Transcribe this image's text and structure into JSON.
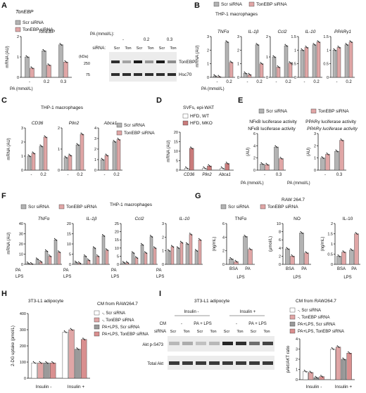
{
  "colors": {
    "scr": "#b3b3b3",
    "ton": "#e0a6a6",
    "ton_dark": "#c97b7b",
    "axis": "#222222",
    "blot_bg": "#ececec",
    "band": "#1a1a1a"
  },
  "legend": {
    "scr": "Scr siRNA",
    "ton": "TonEBP siRNA",
    "wt": "HFD, WT",
    "mko": "HFD, MKO"
  },
  "headers": {
    "thp1": "THP-1 macrophages",
    "svf": "SVFs, epi-WAT",
    "raw": "RAW 264.7",
    "adipo": "3T3-L1 adipocyte",
    "cm": "CM from RAW264.7"
  },
  "labels": {
    "mrna": "mRNA (AU)",
    "au": "(AU)",
    "pa_axis": "PA (mmol/L)",
    "pa": "PA",
    "lps": "LPS",
    "bsa": "BSA",
    "ngml": "(ng/mL)",
    "umol": "(μmol/L)",
    "twodg": "2-DG uptake (pmol/L)",
    "ratio": "pAkt/AKT ratio",
    "insulin_minus": "Insulin -",
    "insulin_plus": "Insulin +",
    "siRNA": "siRNA:",
    "kda": "(kDa)",
    "cm": "CM",
    "sirna": "siRNA",
    "scr": "Scr",
    "ton": "Ton",
    "pa_lps": "PA + LPS",
    "dash": "-"
  },
  "cm_legend": [
    "-, Scr siRNA",
    "-, TonEBP siRNA",
    "PA+LPS, Scr siRNA",
    "PA+LPS, TonEBP siRNA"
  ],
  "blot": {
    "tonebp": "TonEBP",
    "hsc70": "Hsc70",
    "akt_p": "Akt p-S473",
    "akt_total": "Total Akt",
    "marker_kda": [
      "250",
      "75"
    ],
    "pa_row": [
      "-",
      "0.2",
      "0.3"
    ],
    "pa_label": "PA (mmol/L):"
  },
  "panels": {
    "A": "A",
    "B": "B",
    "C": "C",
    "D": "D",
    "E": "E",
    "F": "F",
    "G": "G",
    "H": "H",
    "I": "I"
  },
  "chart_data": [
    {
      "panel": "A",
      "type": "bar",
      "title": "TonEBP",
      "ylabel": "mRNA (AU)",
      "ylim": [
        0,
        2
      ],
      "yticks": [
        0,
        1,
        2
      ],
      "categories": [
        "-",
        "0.2",
        "0.3"
      ],
      "series": [
        {
          "name": "Scr siRNA",
          "values": [
            1.0,
            1.3,
            1.6
          ]
        },
        {
          "name": "TonEBP siRNA",
          "values": [
            0.45,
            0.6,
            0.75
          ]
        }
      ]
    },
    {
      "panel": "B",
      "type": "bar",
      "title": "TNFα",
      "ylim": [
        0,
        3
      ],
      "yticks": [
        0,
        1,
        2,
        3
      ],
      "categories": [
        "-",
        "0.2"
      ],
      "series": [
        {
          "name": "Scr siRNA",
          "values": [
            0.1,
            2.6
          ]
        },
        {
          "name": "TonEBP siRNA",
          "values": [
            0.05,
            1.1
          ]
        }
      ]
    },
    {
      "panel": "B",
      "type": "bar",
      "title": "IL-1β",
      "ylim": [
        0,
        3
      ],
      "yticks": [
        0,
        1,
        2,
        3
      ],
      "categories": [
        "-",
        "0.2"
      ],
      "series": [
        {
          "name": "Scr siRNA",
          "values": [
            0.3,
            2.4
          ]
        },
        {
          "name": "TonEBP siRNA",
          "values": [
            0.2,
            1.0
          ]
        }
      ]
    },
    {
      "panel": "B",
      "type": "bar",
      "title": "Ccl2",
      "ylim": [
        0,
        2
      ],
      "yticks": [
        0,
        1,
        2
      ],
      "categories": [
        "-",
        "0.2"
      ],
      "series": [
        {
          "name": "Scr siRNA",
          "values": [
            1.0,
            1.55
          ]
        },
        {
          "name": "TonEBP siRNA",
          "values": [
            0.5,
            0.7
          ]
        }
      ]
    },
    {
      "panel": "B",
      "type": "bar",
      "title": "IL-10",
      "ylim": [
        0,
        1.5
      ],
      "yticks": [
        0,
        0.5,
        1,
        1.5
      ],
      "categories": [
        "-",
        "0.2"
      ],
      "series": [
        {
          "name": "Scr siRNA",
          "values": [
            1.0,
            1.2
          ]
        },
        {
          "name": "TonEBP siRNA",
          "values": [
            1.1,
            1.3
          ]
        }
      ]
    },
    {
      "panel": "B",
      "type": "bar",
      "title": "PPARγ1",
      "ylim": [
        0,
        1.5
      ],
      "yticks": [
        0,
        0.5,
        1,
        1.5
      ],
      "categories": [
        "-",
        "0.2"
      ],
      "series": [
        {
          "name": "Scr siRNA",
          "values": [
            1.0,
            1.2
          ]
        },
        {
          "name": "TonEBP siRNA",
          "values": [
            1.1,
            1.3
          ]
        }
      ]
    },
    {
      "panel": "C",
      "type": "bar",
      "title": "CD36",
      "ylim": [
        0,
        3
      ],
      "yticks": [
        0,
        1,
        2,
        3
      ],
      "categories": [
        "-",
        "0.2"
      ],
      "series": [
        {
          "name": "Scr siRNA",
          "values": [
            1.0,
            1.7
          ]
        },
        {
          "name": "TonEBP siRNA",
          "values": [
            1.2,
            2.35
          ]
        }
      ]
    },
    {
      "panel": "C",
      "type": "bar",
      "title": "Plin2",
      "ylim": [
        0,
        2
      ],
      "yticks": [
        0,
        1,
        2
      ],
      "categories": [
        "-",
        "0.2"
      ],
      "series": [
        {
          "name": "Scr siRNA",
          "values": [
            0.6,
            1.2
          ]
        },
        {
          "name": "TonEBP siRNA",
          "values": [
            0.7,
            1.7
          ]
        }
      ]
    },
    {
      "panel": "C",
      "type": "bar",
      "title": "Abca1",
      "ylim": [
        0,
        4
      ],
      "yticks": [
        0,
        1,
        2,
        3,
        4
      ],
      "categories": [
        "-",
        "0.2"
      ],
      "series": [
        {
          "name": "Scr siRNA",
          "values": [
            1.0,
            2.7
          ]
        },
        {
          "name": "TonEBP siRNA",
          "values": [
            1.4,
            2.9
          ]
        }
      ]
    },
    {
      "panel": "D",
      "type": "bar",
      "ylabel": "mRNA (AU)",
      "ylim": [
        0,
        20
      ],
      "yticks": [
        0,
        5,
        10,
        15,
        20
      ],
      "categories": [
        "CD36",
        "Plin2",
        "Abca1"
      ],
      "series": [
        {
          "name": "HFD, WT",
          "values": [
            1.0,
            1.0,
            1.0
          ]
        },
        {
          "name": "HFD, MKO",
          "values": [
            11.5,
            2.2,
            3.5
          ]
        }
      ]
    },
    {
      "panel": "E",
      "type": "bar",
      "title": "NFκB luciferase activity",
      "ylabel": "(AU)",
      "ylim": [
        0,
        6
      ],
      "yticks": [
        0,
        2,
        4,
        6
      ],
      "categories": [
        "-",
        "0.3"
      ],
      "series": [
        {
          "name": "Scr siRNA",
          "values": [
            1.0,
            3.8
          ]
        },
        {
          "name": "TonEBP siRNA",
          "values": [
            0.9,
            1.9
          ]
        }
      ]
    },
    {
      "panel": "E",
      "type": "bar",
      "title": "PPARγ luciferase activity",
      "ylabel": "(AU)",
      "ylim": [
        0,
        3
      ],
      "yticks": [
        0,
        1,
        2,
        3
      ],
      "categories": [
        "-",
        "0.3"
      ],
      "series": [
        {
          "name": "Scr siRNA",
          "values": [
            1.0,
            1.55
          ]
        },
        {
          "name": "TonEBP siRNA",
          "values": [
            1.3,
            2.45
          ]
        }
      ]
    },
    {
      "panel": "F",
      "type": "bar",
      "title": "TNFα",
      "ylim": [
        0,
        40
      ],
      "yticks": [
        0,
        10,
        20,
        30,
        40
      ],
      "categories": [
        "-/-",
        "PA",
        "LPS",
        "PA+LPS"
      ],
      "series": [
        {
          "name": "Scr siRNA",
          "values": [
            1.0,
            5.0,
            13.0,
            24.0
          ]
        },
        {
          "name": "TonEBP siRNA",
          "values": [
            0.5,
            2.5,
            8.0,
            12.0
          ]
        }
      ]
    },
    {
      "panel": "F",
      "type": "bar",
      "title": "IL-1β",
      "ylim": [
        0,
        20
      ],
      "yticks": [
        0,
        5,
        10,
        15,
        20
      ],
      "categories": [
        "-/-",
        "PA",
        "LPS",
        "PA+LPS"
      ],
      "series": [
        {
          "name": "Scr siRNA",
          "values": [
            1.0,
            4.0,
            8.0,
            14.0
          ]
        },
        {
          "name": "TonEBP siRNA",
          "values": [
            0.6,
            2.0,
            4.0,
            7.0
          ]
        }
      ]
    },
    {
      "panel": "F",
      "type": "bar",
      "title": "Ccl2",
      "ylim": [
        0,
        25
      ],
      "yticks": [
        0,
        5,
        10,
        15,
        20,
        25
      ],
      "categories": [
        "-/-",
        "PA",
        "LPS",
        "PA+LPS"
      ],
      "series": [
        {
          "name": "Scr siRNA",
          "values": [
            1.0,
            7.0,
            12.0,
            17.0
          ]
        },
        {
          "name": "TonEBP siRNA",
          "values": [
            1.0,
            4.0,
            7.0,
            10.0
          ]
        }
      ]
    },
    {
      "panel": "F",
      "type": "bar",
      "title": "IL-10",
      "ylim": [
        0,
        3
      ],
      "yticks": [
        0,
        1,
        2,
        3
      ],
      "categories": [
        "-/-",
        "PA",
        "LPS",
        "PA+LPS"
      ],
      "series": [
        {
          "name": "Scr siRNA",
          "values": [
            1.0,
            1.2,
            1.5,
            1.0
          ]
        },
        {
          "name": "TonEBP siRNA",
          "values": [
            1.3,
            1.6,
            2.2,
            1.8
          ]
        }
      ]
    },
    {
      "panel": "G",
      "type": "bar",
      "title": "TNFα",
      "ylabel": "(ng/mL)",
      "ylim": [
        0,
        6
      ],
      "yticks": [
        0,
        2,
        4,
        6
      ],
      "categories": [
        "BSA",
        "PA"
      ],
      "series": [
        {
          "name": "Scr siRNA",
          "values": [
            0.8,
            4.1
          ]
        },
        {
          "name": "TonEBP siRNA",
          "values": [
            0.4,
            2.2
          ]
        }
      ]
    },
    {
      "panel": "G",
      "type": "bar",
      "title": "NO",
      "ylabel": "(μmol/L)",
      "ylim": [
        0,
        10
      ],
      "yticks": [
        0,
        2,
        4,
        6,
        8,
        10
      ],
      "categories": [
        "BSA",
        "PA"
      ],
      "series": [
        {
          "name": "Scr siRNA",
          "values": [
            3.8,
            7.7
          ]
        },
        {
          "name": "TonEBP siRNA",
          "values": [
            2.0,
            2.8
          ]
        }
      ]
    },
    {
      "panel": "G",
      "type": "bar",
      "title": "IL-10",
      "ylabel": "(ng/mL)",
      "ylim": [
        0,
        2
      ],
      "yticks": [
        0,
        0.5,
        1,
        1.5,
        2
      ],
      "categories": [
        "BSA",
        "PA"
      ],
      "series": [
        {
          "name": "Scr siRNA",
          "values": [
            0.4,
            0.7
          ]
        },
        {
          "name": "TonEBP siRNA",
          "values": [
            0.6,
            1.5
          ]
        }
      ]
    },
    {
      "panel": "H",
      "type": "bar",
      "ylabel": "2-DG uptake (pmol/L)",
      "ylim": [
        0,
        400
      ],
      "yticks": [
        0,
        100,
        200,
        300,
        400
      ],
      "categories": [
        "Insulin -",
        "Insulin +"
      ],
      "series": [
        {
          "name": "-, Scr siRNA",
          "values": [
            95,
            285
          ]
        },
        {
          "name": "-, TonEBP siRNA",
          "values": [
            95,
            300
          ]
        },
        {
          "name": "PA+LPS, Scr siRNA",
          "values": [
            95,
            180
          ]
        },
        {
          "name": "PA+LPS, TonEBP siRNA",
          "values": [
            95,
            240
          ]
        }
      ]
    },
    {
      "panel": "I",
      "type": "bar",
      "ylabel": "pAkt/AKT ratio",
      "ylim": [
        0,
        4
      ],
      "yticks": [
        0,
        1,
        2,
        3,
        4
      ],
      "categories": [
        "Insulin -",
        "Insulin +"
      ],
      "series": [
        {
          "name": "-, Scr siRNA",
          "values": [
            0.8,
            3.0
          ]
        },
        {
          "name": "-, TonEBP siRNA",
          "values": [
            0.7,
            3.2
          ]
        },
        {
          "name": "PA+LPS, Scr siRNA",
          "values": [
            0.2,
            2.0
          ]
        },
        {
          "name": "PA+LPS, TonEBP siRNA",
          "values": [
            0.3,
            2.6
          ]
        }
      ]
    }
  ]
}
